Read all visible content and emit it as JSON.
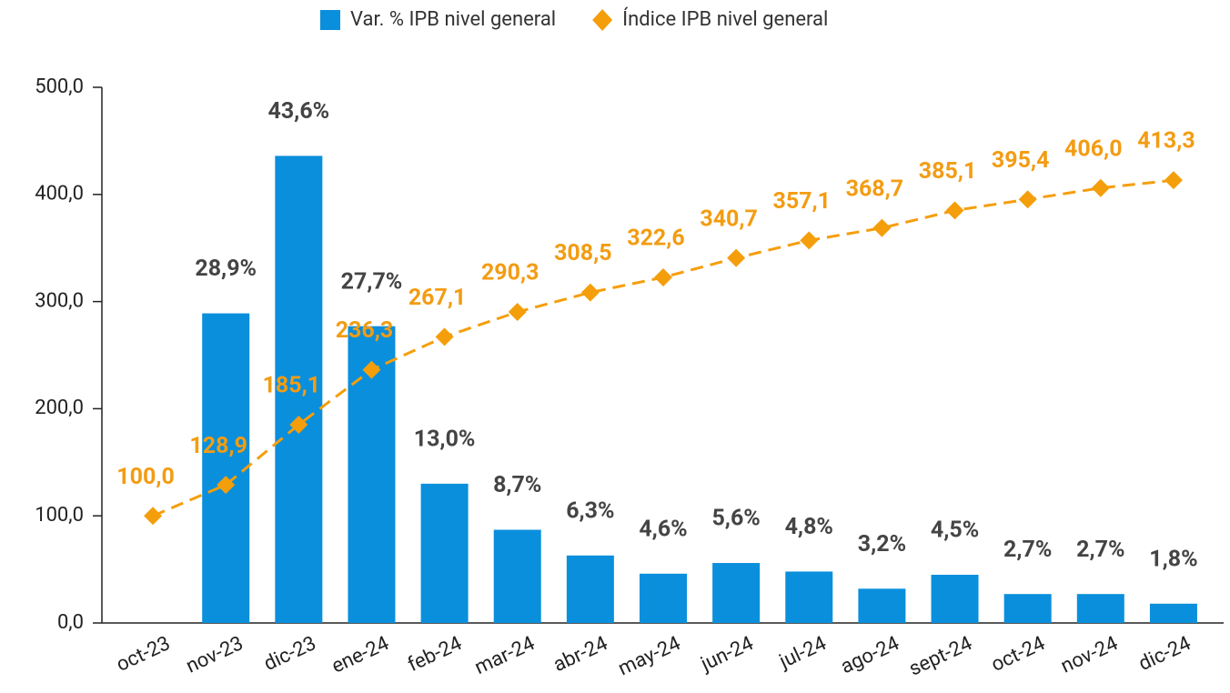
{
  "chart_data": {
    "type": "bar_line",
    "categories": [
      "oct-23",
      "nov-23",
      "dic-23",
      "ene-24",
      "feb-24",
      "mar-24",
      "abr-24",
      "may-24",
      "jun-24",
      "jul-24",
      "ago-24",
      "sept-24",
      "oct-24",
      "nov-24",
      "dic-24"
    ],
    "series": [
      {
        "name": "Var. % IPB nivel general",
        "type": "bar",
        "axis": "y2",
        "color": "#0a8fdc",
        "values": [
          null,
          28.9,
          43.6,
          27.7,
          13.0,
          8.7,
          6.3,
          4.6,
          5.6,
          4.8,
          3.2,
          4.5,
          2.7,
          2.7,
          1.8
        ],
        "value_labels": [
          null,
          "28,9%",
          "43,6%",
          "27,7%",
          "13,0%",
          "8,7%",
          "6,3%",
          "4,6%",
          "5,6%",
          "4,8%",
          "3,2%",
          "4,5%",
          "2,7%",
          "2,7%",
          "1,8%"
        ]
      },
      {
        "name": "Índice IPB nivel general",
        "type": "line",
        "color": "#f59e0b",
        "values": [
          100.0,
          128.9,
          185.1,
          236.3,
          267.1,
          290.3,
          308.5,
          322.6,
          340.7,
          357.1,
          368.7,
          385.1,
          395.4,
          406.0,
          413.3
        ],
        "value_labels": [
          "100,0",
          "128,9",
          "185,1",
          "236,3",
          "267,1",
          "290,3",
          "308,5",
          "322,6",
          "340,7",
          "357,1",
          "368,7",
          "385,1",
          "395,4",
          "406,0",
          "413,3"
        ]
      }
    ],
    "ylim": [
      0,
      500
    ],
    "yticks": [
      {
        "value": 0,
        "label": "0,0"
      },
      {
        "value": 100,
        "label": "100,0"
      },
      {
        "value": 200,
        "label": "200,0"
      },
      {
        "value": 300,
        "label": "300,0"
      },
      {
        "value": 400,
        "label": "400,0"
      },
      {
        "value": 500,
        "label": "500,0"
      }
    ],
    "y2lim": [
      0,
      50
    ],
    "legend": "top"
  }
}
